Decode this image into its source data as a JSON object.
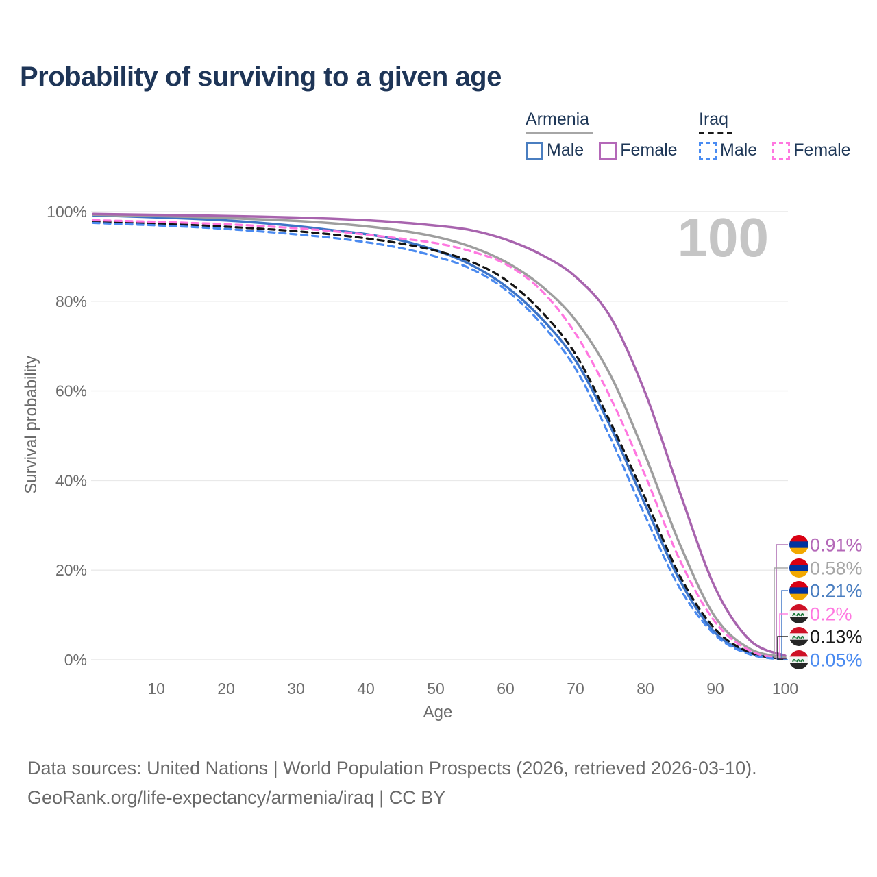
{
  "title": "Probability of surviving to a given age",
  "watermark": "100",
  "legend": {
    "groups": [
      {
        "label": "Armenia",
        "underline_color": "#a6a6a6",
        "underline_style": "solid",
        "items": [
          {
            "label": "Male",
            "color": "#4a7ec0",
            "dash": false
          },
          {
            "label": "Female",
            "color": "#b468b8",
            "dash": false
          }
        ]
      },
      {
        "label": "Iraq",
        "underline_color": "#1a1a1a",
        "underline_style": "dashed",
        "items": [
          {
            "label": "Male",
            "color": "#4a8cf2",
            "dash": true
          },
          {
            "label": "Female",
            "color": "#ff77e0",
            "dash": true
          }
        ]
      }
    ]
  },
  "axes": {
    "y_label": "Survival probability",
    "x_label": "Age",
    "y_ticks": [
      "100%",
      "80%",
      "60%",
      "40%",
      "20%",
      "0%"
    ],
    "y_tick_values": [
      100,
      80,
      60,
      40,
      20,
      0
    ],
    "x_ticks": [
      10,
      20,
      30,
      40,
      50,
      60,
      70,
      80,
      90,
      100
    ]
  },
  "chart_data": {
    "type": "line",
    "xlabel": "Age",
    "ylabel": "Survival probability",
    "xlim": [
      0,
      100
    ],
    "ylim": [
      0,
      100
    ],
    "grid": "horizontal",
    "x": [
      1,
      5,
      10,
      15,
      20,
      25,
      30,
      35,
      40,
      45,
      50,
      55,
      60,
      65,
      70,
      75,
      80,
      85,
      90,
      95,
      100
    ],
    "series": [
      {
        "name": "Armenia Female",
        "country": "armenia",
        "line": "solid",
        "color": "#a864ae",
        "label_color": "#b468b8",
        "end_label": "0.91%",
        "values": [
          99.5,
          99.4,
          99.3,
          99.2,
          99.05,
          98.9,
          98.7,
          98.45,
          98.1,
          97.6,
          96.9,
          95.9,
          93.8,
          90.5,
          85.5,
          76.5,
          59.5,
          37.0,
          16.0,
          4.3,
          0.91
        ]
      },
      {
        "name": "Armenia (both sexes)",
        "country": "armenia",
        "line": "solid",
        "color": "#9e9e9e",
        "label_color": "#a6a6a6",
        "end_label": "0.58%",
        "values": [
          99.35,
          99.2,
          99.05,
          98.85,
          98.6,
          98.3,
          97.95,
          97.45,
          96.75,
          95.8,
          94.4,
          92.2,
          88.8,
          83.6,
          75.8,
          63.5,
          45.5,
          25.5,
          9.5,
          2.4,
          0.58
        ]
      },
      {
        "name": "Armenia Male",
        "country": "armenia",
        "line": "solid",
        "color": "#3d74c6",
        "label_color": "#4a7ec0",
        "end_label": "0.21%",
        "values": [
          99.2,
          99.0,
          98.75,
          98.45,
          98.05,
          97.5,
          96.8,
          95.9,
          95.0,
          93.6,
          91.4,
          88.2,
          83.4,
          76.4,
          66.8,
          52.0,
          34.5,
          17.5,
          6.0,
          1.5,
          0.21
        ]
      },
      {
        "name": "Iraq Female",
        "country": "iraq",
        "line": "dashed",
        "color": "#ff77e0",
        "label_color": "#ff77e0",
        "end_label": "0.2%",
        "values": [
          98.1,
          97.95,
          97.75,
          97.5,
          97.2,
          96.8,
          96.3,
          95.7,
          94.9,
          94.0,
          93.0,
          91.2,
          88.3,
          82.6,
          72.8,
          58.5,
          41.0,
          22.0,
          8.4,
          2.0,
          0.2
        ]
      },
      {
        "name": "Iraq (both sexes)",
        "country": "iraq",
        "line": "dashed",
        "color": "#141414",
        "label_color": "#1a1a1a",
        "end_label": "0.13%",
        "values": [
          97.8,
          97.6,
          97.35,
          97.05,
          96.65,
          96.2,
          95.65,
          94.95,
          94.05,
          92.9,
          91.3,
          88.9,
          84.8,
          77.9,
          68.2,
          53.0,
          36.0,
          18.5,
          6.8,
          1.6,
          0.13
        ]
      },
      {
        "name": "Iraq Male",
        "country": "iraq",
        "line": "dashed",
        "color": "#4a8af0",
        "label_color": "#4a8af0",
        "end_label": "0.05%",
        "values": [
          97.5,
          97.25,
          96.95,
          96.6,
          96.15,
          95.6,
          94.95,
          94.2,
          93.2,
          91.9,
          90.0,
          87.3,
          82.6,
          75.2,
          65.0,
          49.5,
          32.0,
          15.8,
          5.5,
          1.2,
          0.05
        ]
      }
    ],
    "flags": {
      "armenia_stripes": [
        "#d90012",
        "#0033a0",
        "#f2a800"
      ],
      "iraq_stripes": [
        "#ce1126",
        "#f4f4f4",
        "#262626"
      ],
      "iraq_script_color": "#1e7a3c"
    }
  },
  "footer": {
    "line1": "Data sources: United Nations | World Population Prospects (2026, retrieved 2026-03-10).",
    "line2": "GeoRank.org/life-expectancy/armenia/iraq | CC BY"
  }
}
